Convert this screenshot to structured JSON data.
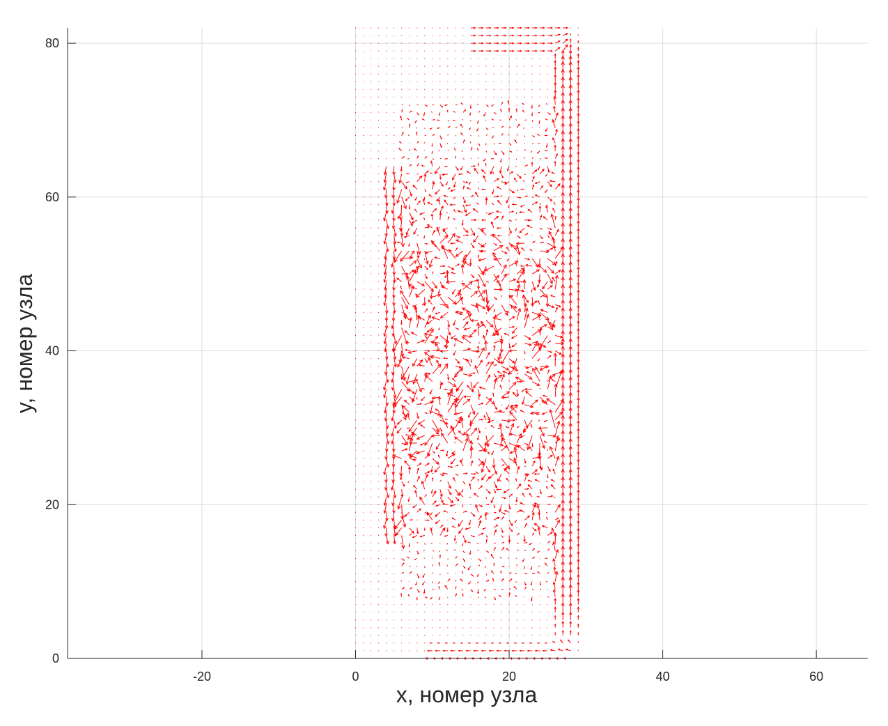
{
  "chart_data": {
    "type": "quiver",
    "title": "",
    "xlabel": "x, номер узла",
    "ylabel": "y, номер узла",
    "xlim": [
      -37.5,
      66.7
    ],
    "ylim": [
      0,
      82
    ],
    "xticks": [
      -20,
      0,
      20,
      40,
      60
    ],
    "xtick_labels": [
      "-20",
      "0",
      "20",
      "40",
      "60"
    ],
    "yticks": [
      0,
      20,
      40,
      60,
      80
    ],
    "ytick_labels": [
      "0",
      "20",
      "40",
      "60",
      "80"
    ],
    "grid": true,
    "arrow_color": "#ff0000",
    "field": {
      "x_nodes": [
        0,
        29
      ],
      "y_nodes": [
        0,
        82
      ],
      "description_of_flow": "narrow upward jet along right wall (x≈27-29), weaker downward jet along left (x≈4-6), chaotic vortices in the middle region (y≈10-70), bottom return flow near y≈1"
    },
    "sample_vectors": [
      {
        "x": 28,
        "y": 60,
        "u": 0.0,
        "v": 1.6
      },
      {
        "x": 28,
        "y": 40,
        "u": 0.0,
        "v": 1.7
      },
      {
        "x": 28,
        "y": 20,
        "u": 0.0,
        "v": 0.6
      },
      {
        "x": 27,
        "y": 70,
        "u": 0.0,
        "v": 1.5
      },
      {
        "x": 5,
        "y": 40,
        "u": 0.1,
        "v": -1.4
      },
      {
        "x": 5,
        "y": 30,
        "u": 0.0,
        "v": -1.2
      },
      {
        "x": 5,
        "y": 55,
        "u": 0.0,
        "v": -1.0
      },
      {
        "x": 20,
        "y": 1,
        "u": -0.8,
        "v": 0.0
      },
      {
        "x": 12,
        "y": 35,
        "u": 0.8,
        "v": 0.5
      },
      {
        "x": 18,
        "y": 45,
        "u": -0.6,
        "v": 1.0
      },
      {
        "x": 24,
        "y": 35,
        "u": -0.9,
        "v": -0.8
      },
      {
        "x": 20,
        "y": 80,
        "u": 0.6,
        "v": 0.0
      }
    ]
  }
}
